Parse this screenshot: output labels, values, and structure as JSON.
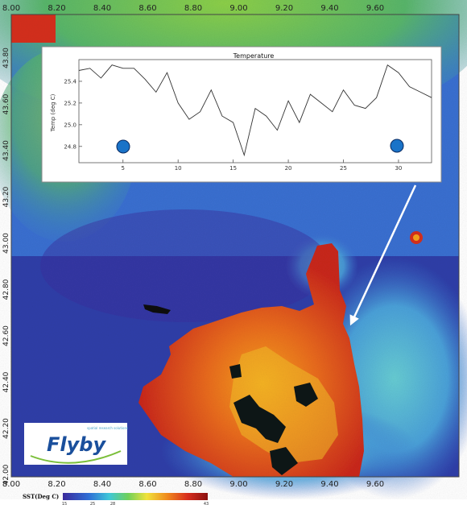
{
  "map": {
    "x_ticks_top": [
      "8.00",
      "8.20",
      "8.40",
      "8.60",
      "8.80",
      "9.00",
      "9.20",
      "9.40",
      "9.60"
    ],
    "x_ticks_bottom": [
      "8.00",
      "8.20",
      "8.40",
      "8.60",
      "8.80",
      "9.00",
      "9.20",
      "9.40",
      "9.60"
    ],
    "y_ticks_left": [
      "43.80",
      "43.60",
      "43.40",
      "43.20",
      "43.00",
      "42.80",
      "42.60",
      "42.40",
      "42.20",
      "42.00"
    ]
  },
  "inset_chart": {
    "title": "Temperature",
    "ylabel": "Temp (deg C)",
    "x_ticks": [
      "5",
      "10",
      "15",
      "20",
      "25",
      "30"
    ],
    "y_ticks": [
      "24.8",
      "25.0",
      "25.2",
      "25.4"
    ]
  },
  "logo": {
    "name": "Flyby",
    "tagline": "spatial research solutions"
  },
  "legend": {
    "label": "SST(Deg C)",
    "ticks": [
      "15",
      "25",
      "28",
      "43"
    ]
  },
  "colors": {
    "sea_deep": "#2f3fa8",
    "sea_mid": "#3a74d0",
    "sea_warm": "#5bc1c8",
    "land_hot": "#d4301e",
    "land_orange": "#ef7b1f",
    "north_green": "#6fc04a",
    "arrow": "#ffffff",
    "logo_blue": "#1a4f9c"
  },
  "chart_data": {
    "type": "line",
    "title": "Temperature",
    "xlabel": "",
    "ylabel": "Temp (deg C)",
    "xlim": [
      1,
      33
    ],
    "ylim": [
      24.65,
      25.6
    ],
    "x": [
      1,
      2,
      3,
      4,
      5,
      6,
      7,
      8,
      9,
      10,
      11,
      12,
      13,
      14,
      15,
      16,
      17,
      18,
      19,
      20,
      21,
      22,
      23,
      24,
      25,
      26,
      27,
      28,
      29,
      30,
      31,
      32,
      33
    ],
    "values": [
      25.5,
      25.52,
      25.43,
      25.55,
      25.52,
      25.52,
      25.42,
      25.3,
      25.48,
      25.2,
      25.05,
      25.12,
      25.32,
      25.08,
      25.02,
      24.72,
      25.15,
      25.08,
      24.95,
      25.22,
      25.02,
      25.28,
      25.2,
      25.12,
      25.32,
      25.18,
      25.15,
      25.25,
      25.55,
      25.48,
      25.35,
      25.3,
      25.25
    ]
  }
}
